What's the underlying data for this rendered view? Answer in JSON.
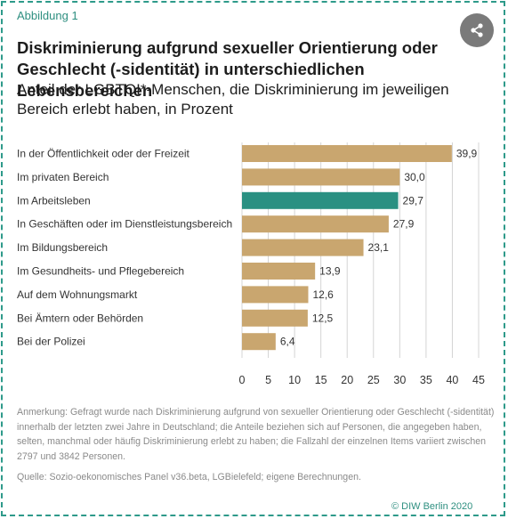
{
  "figure_label": "Abbildung 1",
  "title": "Diskriminierung aufgrund sexueller Orientierung oder Geschlecht (-sidentität) in unterschiedlichen Lebensbereichen",
  "subtitle": "Anteil der LGBTQI*-Menschen, die Diskriminierung im jeweiligen Bereich erlebt haben, in Prozent",
  "note": "Anmerkung: Gefragt wurde nach Diskriminierung aufgrund von sexueller Orientierung oder Geschlecht (-sidentität) innerhalb der letzten zwei Jahre in Deutschland; die Anteile beziehen sich auf Personen, die angegeben haben, selten, manchmal oder häufig Diskriminierung erlebt zu haben; die Fallzahl der einzelnen Items variiert zwischen 2797 und 3842 Personen.",
  "source": "Quelle: Sozio-oekonomisches Panel v36.beta, LGBielefeld; eigene Berechnungen.",
  "copyright": "© DIW Berlin 2020",
  "share_icon": "share-icon",
  "colors": {
    "bar": "#c9a66f",
    "highlight": "#2a9082",
    "accent": "#2e8f80",
    "grid": "#d4d4d4"
  },
  "chart_data": {
    "type": "bar",
    "orientation": "horizontal",
    "categories": [
      "In der Öffentlichkeit oder der Freizeit",
      "Im privaten Bereich",
      "Im Arbeitsleben",
      "In Geschäften oder im Dienstleistungsbereich",
      "Im Bildungsbereich",
      "Im Gesundheits- und Pflegebereich",
      "Auf dem Wohnungsmarkt",
      "Bei Ämtern oder Behörden",
      "Bei der Polizei"
    ],
    "values": [
      39.9,
      30.0,
      29.7,
      27.9,
      23.1,
      13.9,
      12.6,
      12.5,
      6.4
    ],
    "value_labels": [
      "39,9",
      "30,0",
      "29,7",
      "27,9",
      "23,1",
      "13,9",
      "12,6",
      "12,5",
      "6,4"
    ],
    "highlighted_category": "Im Arbeitsleben",
    "xlim": [
      0,
      45
    ],
    "xticks": [
      0,
      5,
      10,
      15,
      20,
      25,
      30,
      35,
      40,
      45
    ],
    "grid": true
  }
}
